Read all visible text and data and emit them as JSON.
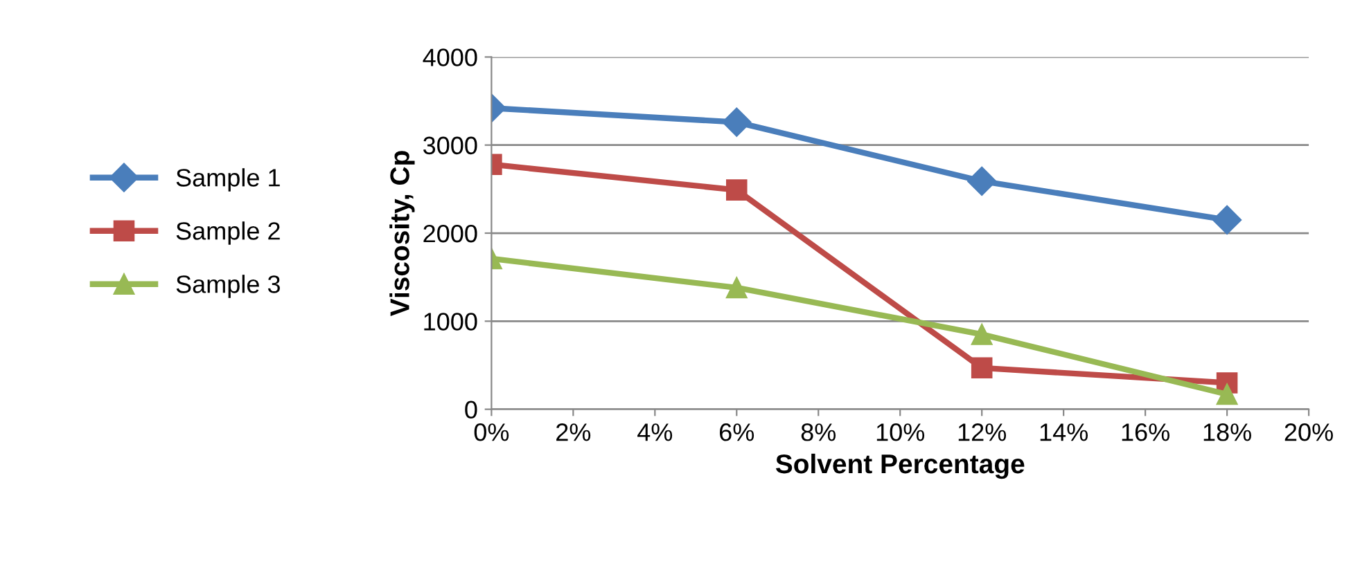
{
  "chart_data": {
    "type": "line",
    "xlabel": "Solvent Percentage",
    "ylabel": "Viscosity, Cp",
    "x": [
      0,
      6,
      12,
      18
    ],
    "series": [
      {
        "name": "Sample 1",
        "color": "#4a7ebb",
        "marker": "diamond",
        "values": [
          3420,
          3260,
          2590,
          2150
        ]
      },
      {
        "name": "Sample 2",
        "color": "#be4b48",
        "marker": "square",
        "values": [
          2780,
          2490,
          470,
          300
        ]
      },
      {
        "name": "Sample 3",
        "color": "#98b954",
        "marker": "triangle",
        "values": [
          1710,
          1380,
          850,
          170
        ]
      }
    ],
    "xlim": [
      0,
      20
    ],
    "xticks": [
      {
        "value": 0,
        "label": "0%"
      },
      {
        "value": 2,
        "label": "2%"
      },
      {
        "value": 4,
        "label": "4%"
      },
      {
        "value": 6,
        "label": "6%"
      },
      {
        "value": 8,
        "label": "8%"
      },
      {
        "value": 10,
        "label": "10%"
      },
      {
        "value": 12,
        "label": "12%"
      },
      {
        "value": 14,
        "label": "14%"
      },
      {
        "value": 16,
        "label": "16%"
      },
      {
        "value": 18,
        "label": "18%"
      },
      {
        "value": 20,
        "label": "20%"
      }
    ],
    "ylim": [
      0,
      4000
    ],
    "yticks": [
      0,
      1000,
      2000,
      3000,
      4000
    ],
    "grid": "y",
    "legend": "left"
  }
}
